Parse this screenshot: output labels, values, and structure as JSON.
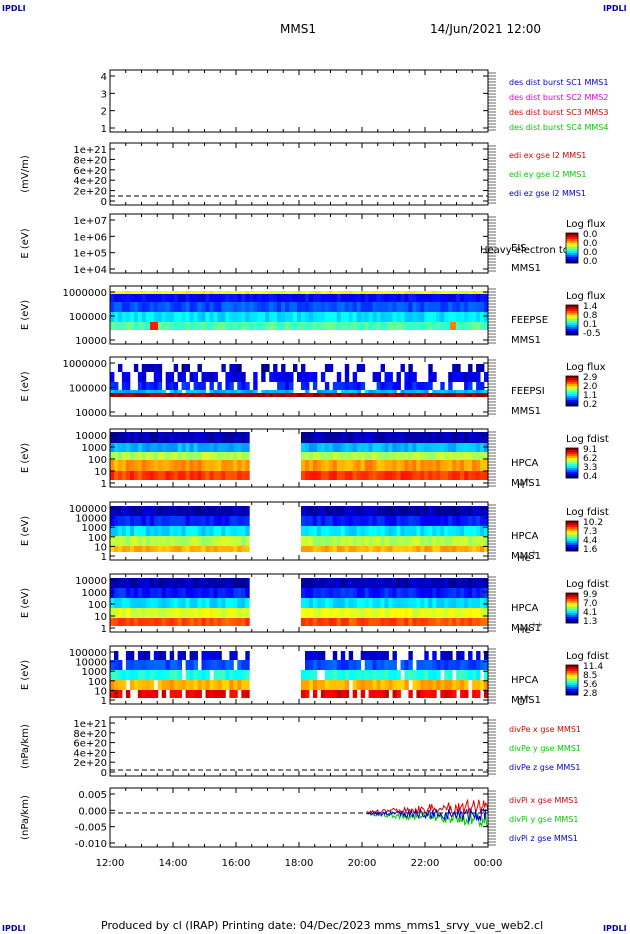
{
  "header": {
    "corner_tl": "IPDLI",
    "corner_tr": "IPDLI",
    "corner_bl": "IPDLI",
    "corner_br": "IPDLI",
    "spacecraft": "MMS1",
    "datetime": "14/Jun/2021 12:00"
  },
  "footer": {
    "text": "Produced by cl (IRAP)    Printing date: 04/Dec/2023    mms_mms1_srvy_vue_web2.cl"
  },
  "colors": {
    "blue": "#0000cc",
    "magenta": "#dd00dd",
    "red": "#dd0000",
    "green": "#00cc00"
  },
  "panels": [
    {
      "type": "empty-lines",
      "yticks": [
        "4",
        "3",
        "2",
        "1"
      ],
      "ylabel": "",
      "legend": [
        {
          "text": "des dist burst SC1 MMS1",
          "color": "#0000cc"
        },
        {
          "text": "des dist burst SC2 MMS2",
          "color": "#dd00dd"
        },
        {
          "text": "des dist burst SC3 MMS3",
          "color": "#dd0000"
        },
        {
          "text": "des dist burst SC4 MMS4",
          "color": "#00cc00"
        }
      ]
    },
    {
      "type": "empty-lines",
      "yticks": [
        "1e+21",
        "8e+20",
        "6e+20",
        "4e+20",
        "2e+20",
        "0"
      ],
      "ylabel": "(mV/m)",
      "legend": [
        {
          "text": "edi ex gse l2 MMS1",
          "color": "#dd0000"
        },
        {
          "text": "edi ey gse l2 MMS1",
          "color": "#00cc00"
        },
        {
          "text": "edi ez gse l2 MMS1",
          "color": "#0000cc"
        }
      ]
    },
    {
      "type": "spectrogram-empty",
      "yticks": [
        "1e+07",
        "1e+06",
        "1e+05",
        "1e+04"
      ],
      "ylabel": "E (eV)",
      "instrument": [
        "EIS",
        "MMS1"
      ],
      "overlay": "Heavy electron to",
      "cbar_title": "Log flux",
      "cbar_ticks": [
        "0.0",
        "0.0",
        "0.0",
        "0.0"
      ]
    },
    {
      "type": "spectrogram",
      "yticks": [
        "1000000",
        "100000",
        "10000"
      ],
      "ylabel": "E (eV)",
      "instrument": [
        "FEEPSE",
        "MMS1"
      ],
      "cbar_title": "Log flux",
      "cbar_ticks": [
        "1.4",
        "0.8",
        "0.1",
        "-0.5"
      ]
    },
    {
      "type": "spectrogram",
      "yticks": [
        "1000000",
        "100000",
        "10000"
      ],
      "ylabel": "E (eV)",
      "instrument": [
        "FEEPSI",
        "MMS1"
      ],
      "cbar_title": "Log flux",
      "cbar_ticks": [
        "2.9",
        "2.0",
        "1.1",
        "0.2"
      ]
    },
    {
      "type": "spectrogram",
      "yticks": [
        "10000",
        "1000",
        "100",
        "10",
        "1"
      ],
      "ylabel": "E (eV)",
      "instrument": [
        "HPCA",
        "MMS1"
      ],
      "species": "H",
      "charge": "+",
      "cbar_title": "Log fdist",
      "cbar_ticks": [
        "9.1",
        "6.2",
        "3.3",
        "0.4"
      ]
    },
    {
      "type": "spectrogram",
      "yticks": [
        "100000",
        "10000",
        "1000",
        "100",
        "10",
        "1"
      ],
      "ylabel": "E (eV)",
      "instrument": [
        "HPCA",
        "MMS1"
      ],
      "species": "He",
      "charge": "+",
      "cbar_title": "Log fdist",
      "cbar_ticks": [
        "10.2",
        "7.3",
        "4.4",
        "1.6"
      ]
    },
    {
      "type": "spectrogram",
      "yticks": [
        "10000",
        "1000",
        "100",
        "10",
        "1"
      ],
      "ylabel": "E (eV)",
      "instrument": [
        "HPCA",
        "MMS1"
      ],
      "species": "He",
      "charge": "++",
      "cbar_title": "Log fdist",
      "cbar_ticks": [
        "9.9",
        "7.0",
        "4.1",
        "1.3"
      ]
    },
    {
      "type": "spectrogram",
      "yticks": [
        "100000",
        "10000",
        "1000",
        "100",
        "10",
        "1"
      ],
      "ylabel": "E (eV)",
      "instrument": [
        "HPCA",
        "MMS1"
      ],
      "species": "O",
      "charge": "+",
      "cbar_title": "Log fdist",
      "cbar_ticks": [
        "11.4",
        "8.5",
        "5.6",
        "2.8"
      ]
    },
    {
      "type": "empty-lines",
      "yticks": [
        "1e+21",
        "8e+20",
        "6e+20",
        "4e+20",
        "2e+20",
        "0"
      ],
      "ylabel": "(nPa/km)",
      "legend": [
        {
          "text": "divPe x gse MMS1",
          "color": "#dd0000"
        },
        {
          "text": "divPe y gse MMS1",
          "color": "#00cc00"
        },
        {
          "text": "divPe z gse MMS1",
          "color": "#0000cc"
        }
      ]
    },
    {
      "type": "timeseries",
      "yticks": [
        "0.005",
        "0.000",
        "-0.005",
        "-0.010"
      ],
      "ylabel": "(nPa/km)",
      "legend": [
        {
          "text": "divPi x gse MMS1",
          "color": "#dd0000"
        },
        {
          "text": "divPi y gse MMS1",
          "color": "#00cc00"
        },
        {
          "text": "divPi z gse MMS1",
          "color": "#0000cc"
        }
      ]
    }
  ],
  "chart_data": {
    "type": "heatmap",
    "title": "MMS1 14/Jun/2021 12:00",
    "x_ticks": [
      "12:00",
      "14:00",
      "16:00",
      "18:00",
      "20:00",
      "22:00",
      "00:00"
    ],
    "hpca_data_gap": [
      "16:20",
      "18:00"
    ],
    "divPi_start": "20:10"
  }
}
